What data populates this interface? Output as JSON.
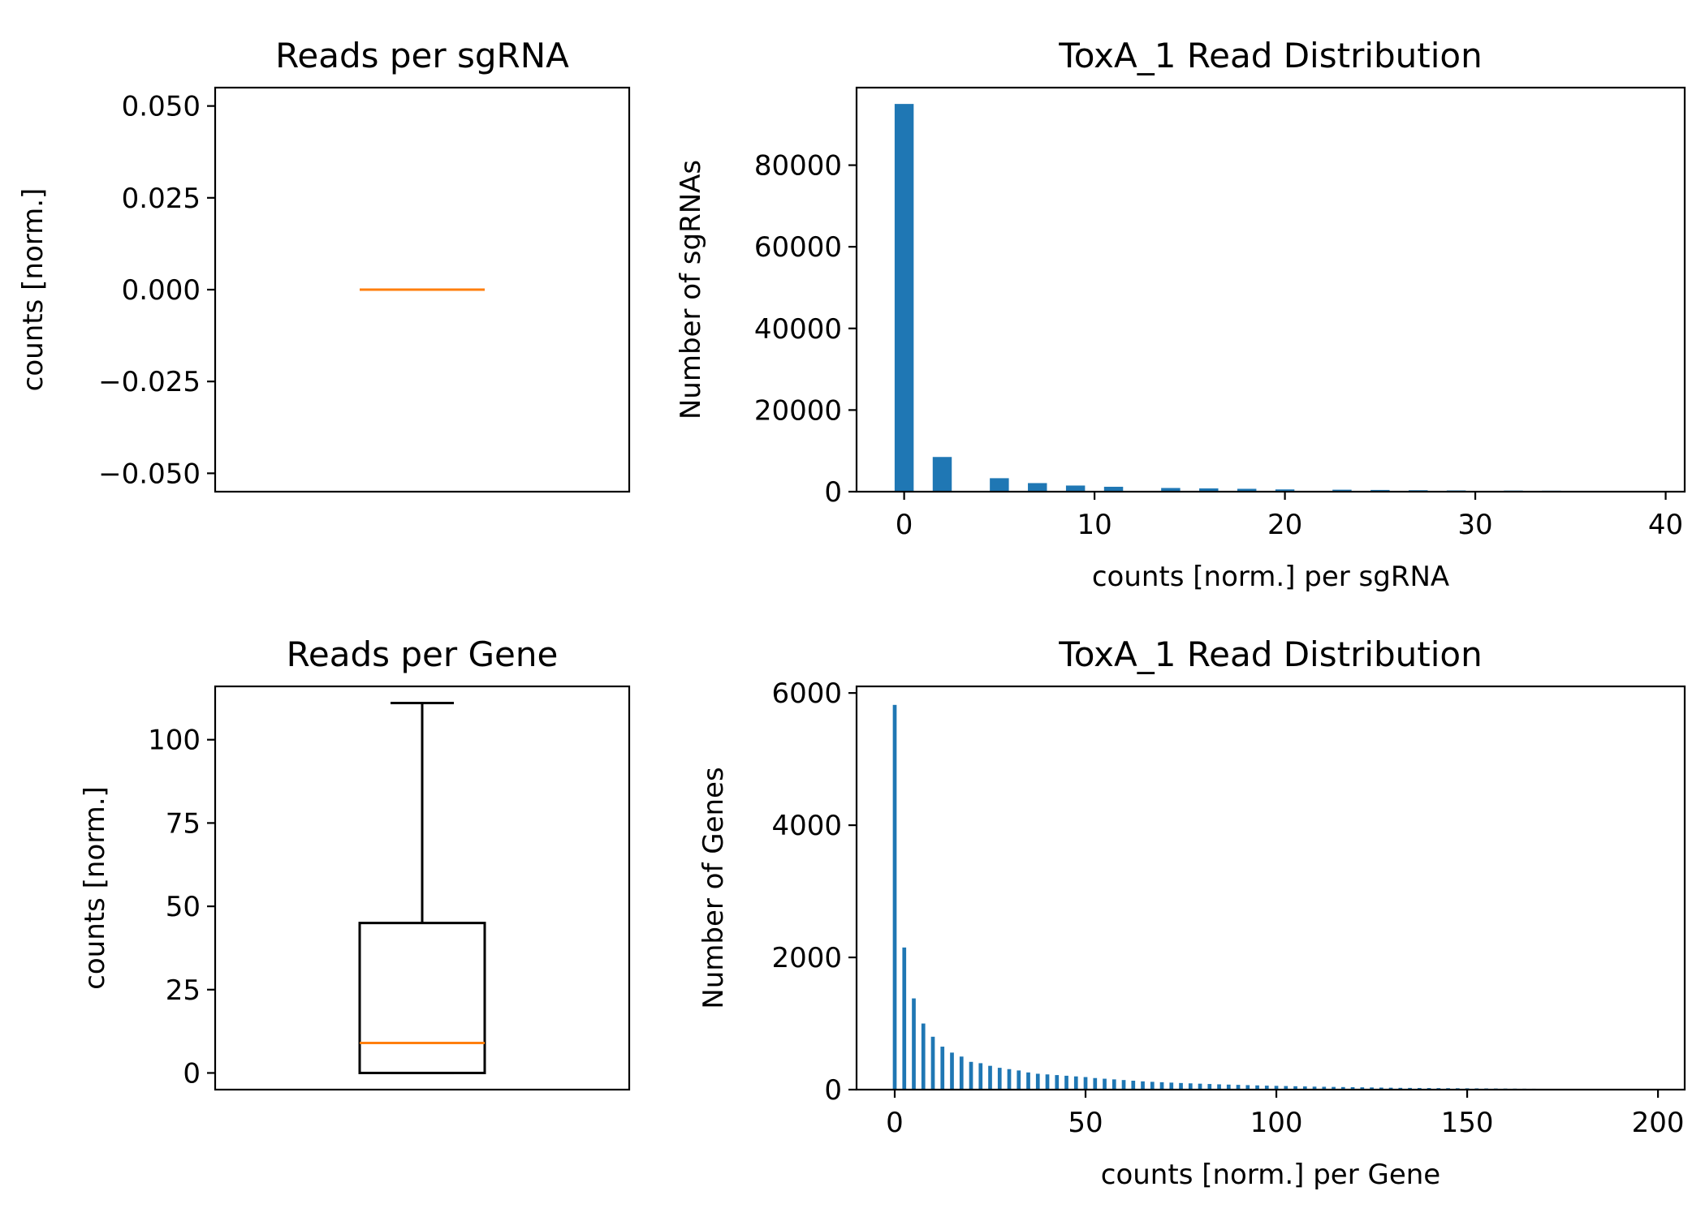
{
  "chart_data": [
    {
      "id": "sgrna-box",
      "type": "box",
      "title": "Reads per sgRNA",
      "xlabel": "",
      "ylabel": "counts [norm.]",
      "ylim": [
        -0.055,
        0.055
      ],
      "yticks": [
        0.05,
        0.025,
        0.0,
        -0.025,
        -0.05
      ],
      "yticklabels": [
        "0.050",
        "0.025",
        "0.000",
        "−0.025",
        "−0.050"
      ],
      "box": {
        "whisker_low": 0,
        "q1": 0,
        "median": 0,
        "q3": 0,
        "whisker_high": 0
      },
      "colors": {
        "box": "#000000",
        "median": "#ff7f0e"
      }
    },
    {
      "id": "sgrna-hist",
      "type": "bar",
      "title": "ToxA_1 Read Distribution",
      "xlabel": "counts [norm.] per sgRNA",
      "ylabel": "Number of sgRNAs",
      "xlim": [
        -2.5,
        41
      ],
      "ylim": [
        0,
        99000
      ],
      "xticks": [
        0,
        10,
        20,
        30,
        40
      ],
      "yticks": [
        0,
        20000,
        40000,
        60000,
        80000
      ],
      "bar_width": 1.0,
      "x": [
        0,
        2,
        5,
        7,
        9,
        11,
        14,
        16,
        18,
        20,
        23,
        25,
        27,
        29,
        32,
        34,
        36,
        39
      ],
      "values": [
        95000,
        8500,
        3300,
        2100,
        1500,
        1200,
        900,
        800,
        700,
        550,
        480,
        420,
        350,
        300,
        260,
        230,
        200,
        170
      ],
      "colors": {
        "bar": "#1f77b4"
      }
    },
    {
      "id": "gene-box",
      "type": "box",
      "title": "Reads per Gene",
      "xlabel": "",
      "ylabel": "counts [norm.]",
      "ylim": [
        -5,
        116
      ],
      "yticks": [
        100,
        75,
        50,
        25,
        0
      ],
      "yticklabels": [
        "100",
        "75",
        "50",
        "25",
        "0"
      ],
      "box": {
        "whisker_low": 0,
        "q1": 0,
        "median": 9,
        "q3": 45,
        "whisker_high": 111
      },
      "colors": {
        "box": "#000000",
        "median": "#ff7f0e"
      }
    },
    {
      "id": "gene-hist",
      "type": "bar",
      "title": "ToxA_1 Read Distribution",
      "xlabel": "counts [norm.] per Gene",
      "ylabel": "Number of Genes",
      "xlim": [
        -10,
        207
      ],
      "ylim": [
        0,
        6100
      ],
      "xticks": [
        0,
        50,
        100,
        150,
        200
      ],
      "yticks": [
        0,
        2000,
        4000,
        6000
      ],
      "bar_width": 1.0,
      "x": [
        0,
        2.5,
        5,
        7.5,
        10,
        12.5,
        15,
        17.5,
        20,
        22.5,
        25,
        27.5,
        30,
        32.5,
        35,
        37.5,
        40,
        42.5,
        45,
        47.5,
        50,
        52.5,
        55,
        57.5,
        60,
        62.5,
        65,
        67.5,
        70,
        72.5,
        75,
        77.5,
        80,
        82.5,
        85,
        87.5,
        90,
        92.5,
        95,
        97.5,
        100,
        102.5,
        105,
        107.5,
        110,
        112.5,
        115,
        117.5,
        120,
        122.5,
        125,
        127.5,
        130,
        132.5,
        135,
        137.5,
        140,
        142.5,
        145,
        147.5,
        150,
        152.5,
        155,
        157.5,
        160,
        162.5,
        165,
        167.5,
        170,
        172.5,
        175,
        177.5,
        180,
        182.5,
        185,
        187.5,
        190,
        192.5,
        195,
        197.5
      ],
      "values": [
        5820,
        2150,
        1380,
        1000,
        800,
        650,
        560,
        500,
        420,
        400,
        360,
        330,
        310,
        290,
        260,
        240,
        230,
        220,
        210,
        200,
        190,
        175,
        165,
        155,
        145,
        135,
        125,
        118,
        112,
        106,
        100,
        95,
        90,
        85,
        80,
        76,
        72,
        68,
        64,
        60,
        57,
        54,
        51,
        48,
        45,
        43,
        41,
        39,
        37,
        35,
        33,
        31,
        29,
        27,
        26,
        25,
        24,
        23,
        22,
        21,
        20,
        19,
        18,
        17,
        16,
        15,
        14,
        13,
        12,
        11,
        10,
        10,
        9,
        9,
        8,
        8,
        7,
        7,
        6,
        6
      ],
      "colors": {
        "bar": "#1f77b4"
      }
    }
  ]
}
